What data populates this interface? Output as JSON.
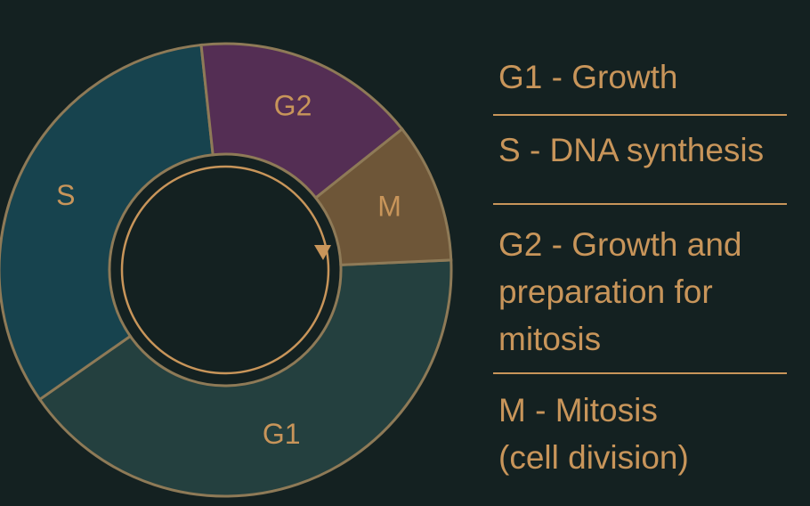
{
  "colors": {
    "background": "#142121",
    "text": "#C8955A",
    "outline": "#8E7A57",
    "divider": "#C8955A"
  },
  "segments": [
    {
      "id": "G1",
      "label": "G1",
      "color": "#24403F",
      "fraction": 0.41
    },
    {
      "id": "S",
      "label": "S",
      "color": "#17434E",
      "fraction": 0.33
    },
    {
      "id": "G2",
      "label": "G2",
      "color": "#542E54",
      "fraction": 0.16
    },
    {
      "id": "M",
      "label": "M",
      "color": "#6E5638",
      "fraction": 0.1
    }
  ],
  "legend": [
    {
      "lines": [
        "G1 - Growth"
      ]
    },
    {
      "lines": [
        "S - DNA synthesis"
      ]
    },
    {
      "lines": [
        "G2 - Growth and",
        "preparation for",
        "mitosis"
      ]
    },
    {
      "lines": [
        "M - Mitosis",
        "(cell division)"
      ]
    }
  ],
  "cycle_arrow": {
    "icon": "circular-arrow-icon",
    "direction": "clockwise"
  }
}
